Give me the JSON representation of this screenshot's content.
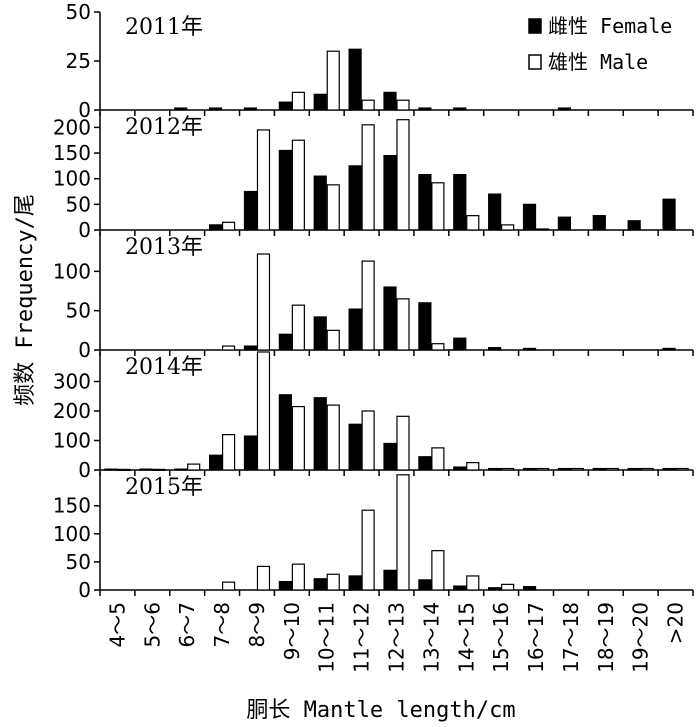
{
  "chart_data": {
    "type": "bar",
    "xlabel": "胴长 Mantle length/cm",
    "ylabel": "频数 Frequency/尾",
    "legend": {
      "placement": "top-right",
      "female_label": "雌性 Female",
      "male_label": "雄性 Male"
    },
    "categories": [
      "4～5",
      "5～6",
      "6～7",
      "7～8",
      "8～9",
      "9～10",
      "10～11",
      "11～12",
      "12～13",
      "13～14",
      "14～15",
      "15～16",
      "16～17",
      "17～18",
      "18～19",
      "19～20",
      ">20"
    ],
    "colors": {
      "female": "#000000",
      "male": "#ffffff",
      "stroke": "#000000"
    },
    "panels": [
      {
        "title": "2011年",
        "ylim": [
          0,
          50
        ],
        "yticks": [
          0,
          25,
          50
        ],
        "series": [
          {
            "name": "雌性 Female",
            "values": [
              0,
              0,
              1,
              1,
              1,
              4,
              8,
              31,
              9,
              1,
              1,
              0,
              0,
              1,
              0,
              0,
              0
            ]
          },
          {
            "name": "雄性 Male",
            "values": [
              0,
              0,
              0,
              0,
              0,
              9,
              30,
              5,
              5,
              0,
              0,
              0,
              0,
              0,
              0,
              0,
              0
            ]
          }
        ]
      },
      {
        "title": "2012年",
        "ylim": [
          0,
          230
        ],
        "yticks": [
          0,
          50,
          100,
          150,
          200
        ],
        "series": [
          {
            "name": "雌性 Female",
            "values": [
              0,
              0,
              0,
              10,
              75,
              155,
              105,
              125,
              145,
              108,
              108,
              70,
              50,
              25,
              28,
              18,
              60
            ]
          },
          {
            "name": "雄性 Male",
            "values": [
              0,
              0,
              0,
              15,
              195,
              175,
              88,
              205,
              215,
              92,
              28,
              10,
              2,
              0,
              0,
              0,
              0
            ]
          }
        ]
      },
      {
        "title": "2013年",
        "ylim": [
          0,
          150
        ],
        "yticks": [
          0,
          50,
          100
        ],
        "series": [
          {
            "name": "雌性 Female",
            "values": [
              0,
              0,
              0,
              0,
              5,
              20,
              42,
              52,
              80,
              60,
              15,
              3,
              2,
              0,
              0,
              0,
              2
            ]
          },
          {
            "name": "雄性 Male",
            "values": [
              0,
              0,
              0,
              5,
              122,
              57,
              25,
              113,
              65,
              8,
              0,
              0,
              0,
              0,
              0,
              0,
              0
            ]
          }
        ]
      },
      {
        "title": "2014年",
        "ylim": [
          0,
          400
        ],
        "yticks": [
          0,
          100,
          200,
          300
        ],
        "series": [
          {
            "name": "雌性 Female",
            "values": [
              3,
              3,
              3,
              50,
              115,
              255,
              245,
              155,
              90,
              45,
              10,
              5,
              5,
              5,
              5,
              5,
              5
            ]
          },
          {
            "name": "雄性 Male",
            "values": [
              2,
              2,
              20,
              120,
              400,
              215,
              220,
              200,
              182,
              75,
              25,
              5,
              5,
              5,
              5,
              5,
              5
            ]
          }
        ]
      },
      {
        "title": "2015年",
        "ylim": [
          0,
          210
        ],
        "yticks": [
          0,
          50,
          100,
          150
        ],
        "series": [
          {
            "name": "雌性 Female",
            "values": [
              0,
              0,
              0,
              0,
              0,
              15,
              20,
              25,
              35,
              18,
              7,
              4,
              6,
              0,
              0,
              0,
              0
            ]
          },
          {
            "name": "雄性 Male",
            "values": [
              0,
              0,
              0,
              14,
              42,
              46,
              28,
              142,
              205,
              70,
              25,
              10,
              0,
              0,
              0,
              0,
              0
            ]
          }
        ]
      }
    ]
  }
}
